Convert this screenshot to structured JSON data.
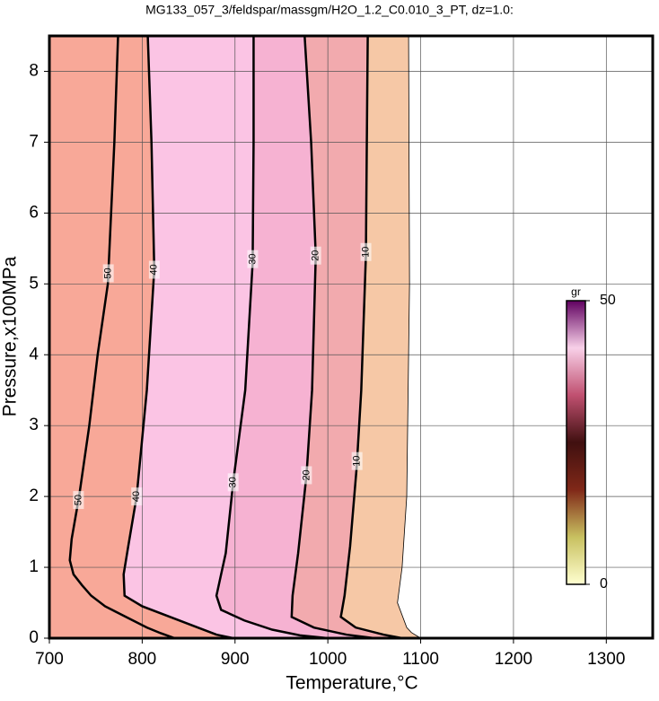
{
  "chart_data": {
    "type": "contour",
    "title": "MG133_057_3/feldspar/massgm/H2O_1.2_C0.010_3_PT, dz=1.0:",
    "x_label": "Temperature,°C",
    "y_label": "Pressure,x100MPa",
    "xlim": [
      700,
      1350
    ],
    "ylim": [
      0,
      8.5
    ],
    "xticks": [
      700,
      800,
      900,
      1000,
      1100,
      1200,
      1300
    ],
    "yticks": [
      0,
      1,
      2,
      3,
      4,
      5,
      6,
      7,
      8
    ],
    "grid": true,
    "background": "#f8a898",
    "contours": [
      {
        "level": 50,
        "fill": "#f8a898",
        "label_at": [
          5.15,
          1.95
        ],
        "x": [
          774,
          770,
          763,
          752,
          743,
          732,
          724,
          722,
          726,
          735,
          745,
          760,
          775,
          790,
          805,
          820,
          835
        ],
        "y": [
          8.5,
          7,
          5,
          4,
          3,
          2,
          1.4,
          1.1,
          0.9,
          0.75,
          0.6,
          0.45,
          0.35,
          0.25,
          0.15,
          0.07,
          0
        ]
      },
      {
        "level": 40,
        "fill": "#fbc4e4",
        "label_at": [
          5.2,
          2.0
        ],
        "x": [
          806,
          810,
          813,
          805,
          794,
          785,
          780,
          781,
          800,
          830,
          860,
          880,
          898
        ],
        "y": [
          8.5,
          7,
          5.2,
          3.5,
          2,
          1.3,
          0.9,
          0.6,
          0.45,
          0.3,
          0.15,
          0.05,
          0
        ]
      },
      {
        "level": 30,
        "fill": "#f6b2d2",
        "label_at": [
          5.35,
          2.2
        ],
        "x": [
          920,
          920,
          919,
          911,
          898,
          890,
          880,
          885,
          910,
          940,
          970,
          1000
        ],
        "y": [
          8.5,
          7,
          5.3,
          3.5,
          2.2,
          1.2,
          0.6,
          0.4,
          0.25,
          0.12,
          0.04,
          0
        ]
      },
      {
        "level": 20,
        "fill": "#f2aaae",
        "label_at": [
          5.4,
          2.3
        ],
        "x": [
          975,
          982,
          987,
          983,
          977,
          968,
          962,
          961,
          985,
          1020,
          1050
        ],
        "y": [
          8.5,
          7,
          5.4,
          3.5,
          2.3,
          1.2,
          0.6,
          0.3,
          0.15,
          0.05,
          0
        ]
      },
      {
        "level": 10,
        "fill": "#f6c8a6",
        "label_at": [
          5.45,
          2.5
        ],
        "x": [
          1043,
          1042,
          1041,
          1036,
          1031,
          1024,
          1018,
          1014,
          1030,
          1060,
          1080
        ],
        "y": [
          8.5,
          7,
          5.4,
          3.5,
          2.4,
          1.3,
          0.6,
          0.3,
          0.15,
          0.05,
          0
        ]
      },
      {
        "level": 0,
        "fill": "#f8eeb0",
        "label_at": [],
        "x": [
          1087,
          1088,
          1085,
          1080,
          1075,
          1085,
          1090,
          1100
        ],
        "y": [
          8.5,
          5,
          2,
          1,
          0.5,
          0.15,
          0.08,
          0
        ]
      }
    ],
    "colorbar": {
      "label": "gr",
      "range": [
        0,
        50
      ],
      "ticks": [
        50,
        0
      ],
      "colors": [
        "#ffffd0",
        "#c8c060",
        "#802818",
        "#401010",
        "#c05070",
        "#f8d0e8",
        "#600060"
      ]
    }
  }
}
